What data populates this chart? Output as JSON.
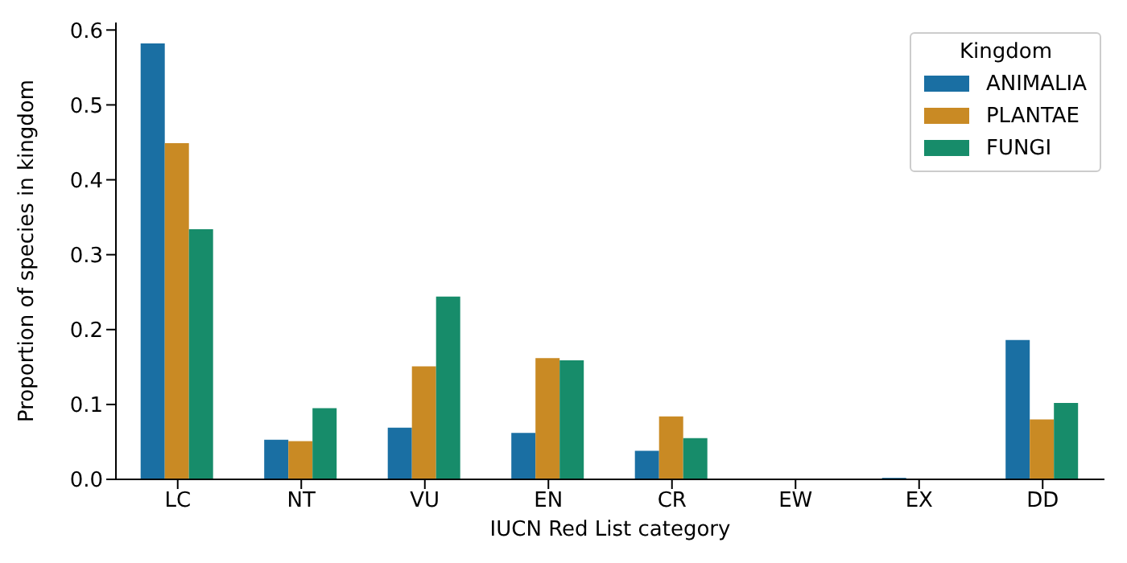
{
  "chart_data": {
    "type": "bar",
    "xlabel": "IUCN Red List category",
    "ylabel": "Proportion of species in kingdom",
    "legend_title": "Kingdom",
    "categories": [
      "LC",
      "NT",
      "VU",
      "EN",
      "CR",
      "EW",
      "EX",
      "DD"
    ],
    "series": [
      {
        "name": "ANIMALIA",
        "color": "#1a6fa3",
        "values": [
          0.582,
          0.053,
          0.069,
          0.062,
          0.038,
          0,
          0.002,
          0.186
        ]
      },
      {
        "name": "PLANTAE",
        "color": "#c98a24",
        "values": [
          0.449,
          0.051,
          0.151,
          0.162,
          0.084,
          0,
          0,
          0.08
        ]
      },
      {
        "name": "FUNGI",
        "color": "#178c6a",
        "values": [
          0.334,
          0.095,
          0.244,
          0.159,
          0.055,
          0,
          0,
          0.102
        ]
      }
    ],
    "ylim": [
      0,
      0.61
    ],
    "yticks": [
      {
        "value": 0,
        "label": "0.0"
      },
      {
        "value": 0.1,
        "label": "0.1"
      },
      {
        "value": 0.2,
        "label": "0.2"
      },
      {
        "value": 0.3,
        "label": "0.3"
      },
      {
        "value": 0.4,
        "label": "0.4"
      },
      {
        "value": 0.5,
        "label": "0.5"
      },
      {
        "value": 0.6,
        "label": "0.6"
      }
    ],
    "grid": false,
    "legend": "top right"
  }
}
